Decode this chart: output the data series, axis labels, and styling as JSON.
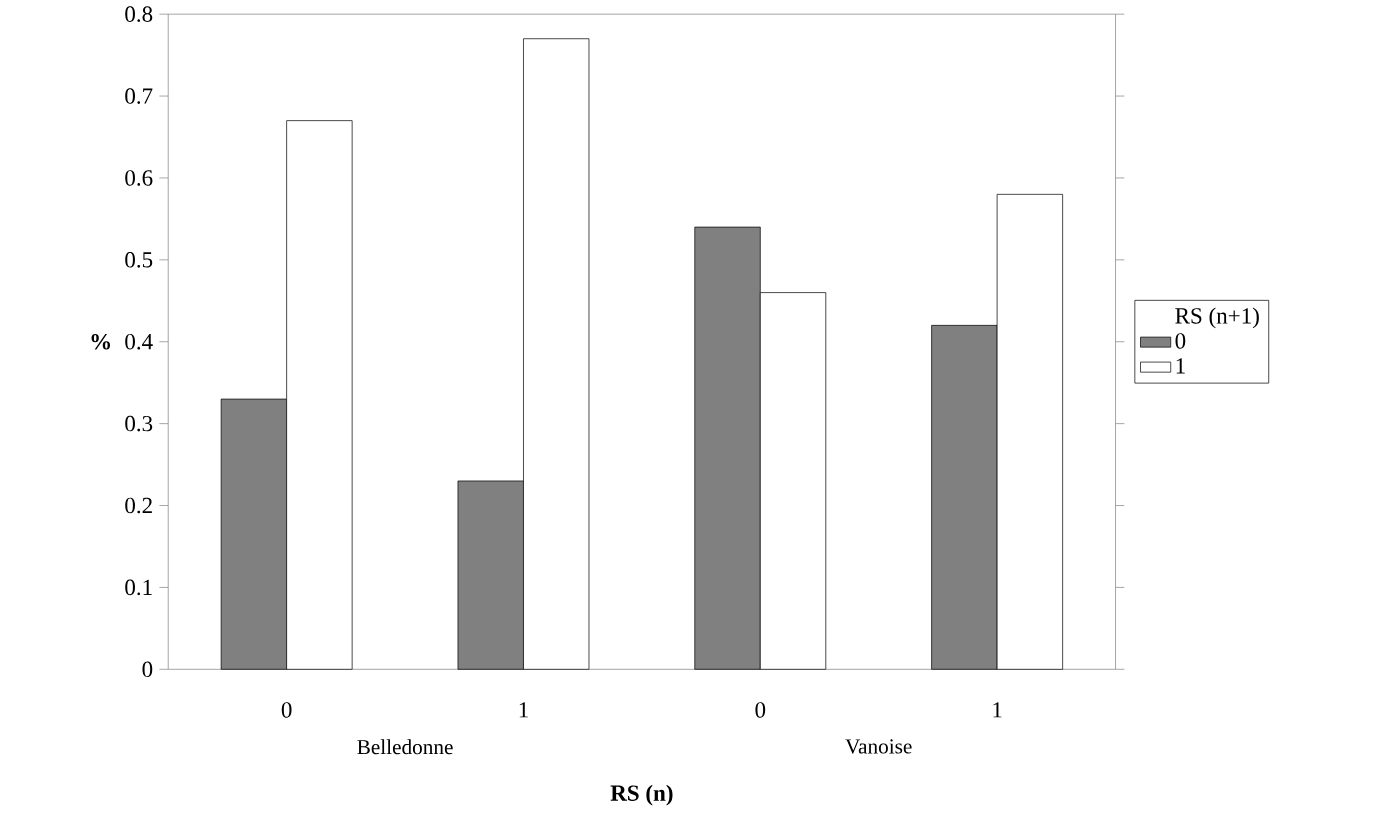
{
  "chart_data": {
    "type": "bar",
    "xlabel": "RS (n)",
    "ylabel": "%",
    "legend_title": "RS (n+1)",
    "categories": [
      "0",
      "1",
      "0",
      "1"
    ],
    "series": [
      {
        "name": "0",
        "color": "#808080",
        "values": [
          0.33,
          0.23,
          0.54,
          0.42
        ]
      },
      {
        "name": "1",
        "color": "#ffffff",
        "values": [
          0.67,
          0.77,
          0.46,
          0.58
        ]
      }
    ],
    "annotations": [
      "Belledonne",
      "Vanoise"
    ],
    "ylim": [
      0,
      0.8
    ],
    "yticks": [
      0,
      0.1,
      0.2,
      0.3,
      0.4,
      0.5,
      0.6,
      0.7,
      0.8
    ],
    "grid": false,
    "legend": "right"
  }
}
